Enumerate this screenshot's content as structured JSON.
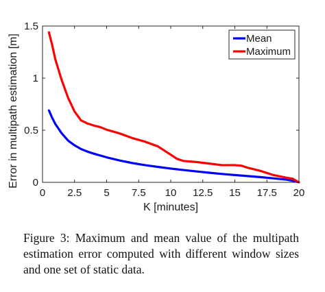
{
  "chart_data": {
    "type": "line",
    "title": "",
    "xlabel": "K [minutes]",
    "ylabel": "Error in multipath estimation [m]",
    "xlim": [
      0,
      20
    ],
    "ylim": [
      0,
      1.5
    ],
    "xticks": [
      0,
      2.5,
      5,
      7.5,
      10,
      12.5,
      15,
      17.5,
      20
    ],
    "xtick_labels": [
      "0",
      "2.5",
      "5",
      "7.5",
      "10",
      "12.5",
      "15",
      "17.5",
      "20"
    ],
    "yticks": [
      0,
      0.5,
      1,
      1.5
    ],
    "ytick_labels": [
      "0",
      "0.5",
      "1",
      "1.5"
    ],
    "grid": false,
    "legend": "top-right",
    "series": [
      {
        "name": "Mean",
        "color": "#0000ff",
        "x": [
          0.5,
          0.75,
          1,
          1.5,
          2,
          2.5,
          3,
          3.5,
          4,
          5,
          6,
          7,
          8,
          9,
          10,
          11,
          12,
          13,
          14,
          15,
          16,
          17,
          18,
          19,
          19.5,
          20
        ],
        "y": [
          0.69,
          0.62,
          0.56,
          0.47,
          0.4,
          0.355,
          0.32,
          0.295,
          0.275,
          0.24,
          0.21,
          0.185,
          0.165,
          0.148,
          0.132,
          0.118,
          0.105,
          0.092,
          0.08,
          0.07,
          0.06,
          0.05,
          0.038,
          0.026,
          0.015,
          0.0
        ]
      },
      {
        "name": "Maximum",
        "color": "#ff0000",
        "x": [
          0.5,
          0.75,
          1,
          1.5,
          2,
          2.5,
          3,
          3.5,
          4,
          4.5,
          5,
          6,
          7,
          8,
          9,
          10,
          10.5,
          11,
          12,
          13,
          14,
          15,
          15.5,
          16,
          17,
          18,
          19,
          19.5,
          20
        ],
        "y": [
          1.44,
          1.32,
          1.18,
          0.98,
          0.81,
          0.68,
          0.595,
          0.565,
          0.545,
          0.53,
          0.505,
          0.47,
          0.425,
          0.39,
          0.345,
          0.265,
          0.225,
          0.205,
          0.195,
          0.18,
          0.165,
          0.165,
          0.16,
          0.14,
          0.11,
          0.07,
          0.045,
          0.035,
          0.0
        ]
      }
    ]
  },
  "caption": "Figure 3: Maximum and mean value of the multipath estimation error computed with different window sizes and one set of static data."
}
